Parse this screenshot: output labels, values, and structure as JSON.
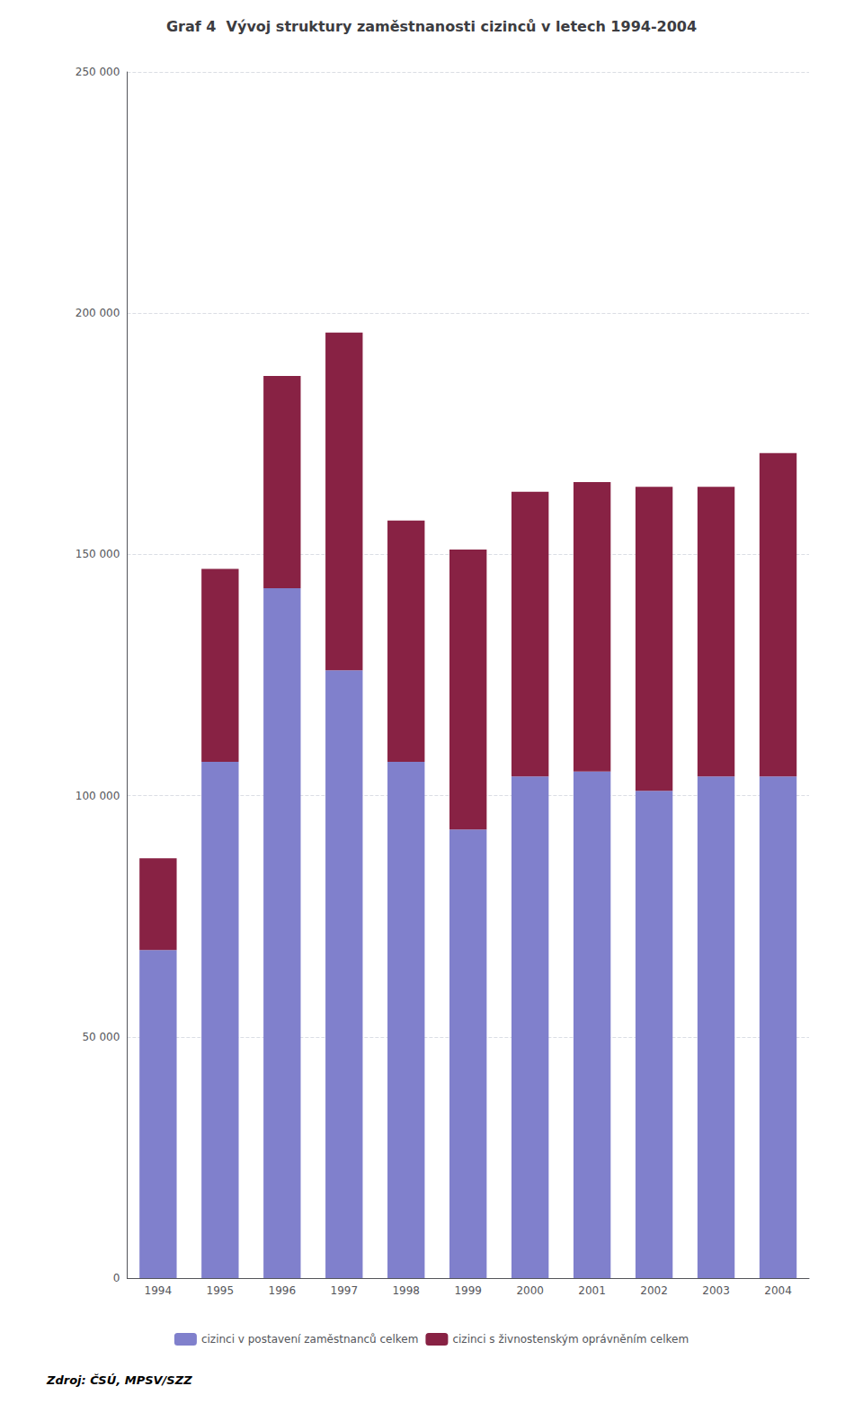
{
  "chart_data": {
    "type": "bar",
    "title": "Graf 4  Vývoj struktury zaměstnanosti cizinců v letech 1994-2004",
    "categories": [
      "1994",
      "1995",
      "1996",
      "1997",
      "1998",
      "1999",
      "2000",
      "2001",
      "2002",
      "2003",
      "2004"
    ],
    "series": [
      {
        "name": "cizinci v postavení zaměstnanců celkem",
        "color": "#8080CC",
        "values": [
          68000,
          107000,
          143000,
          126000,
          107000,
          93000,
          104000,
          105000,
          101000,
          104000,
          104000
        ]
      },
      {
        "name": "cizinci s živnostenským oprávněním celkem",
        "color": "#882244",
        "values": [
          19000,
          40000,
          44000,
          70000,
          50000,
          58000,
          59000,
          60000,
          63000,
          60000,
          67000
        ]
      }
    ],
    "stacked": true,
    "ylim": [
      0,
      250000
    ],
    "yticks": [
      0,
      {
        "value": 50000,
        "label": "50 000"
      },
      {
        "value": 100000,
        "label": "100 000"
      },
      {
        "value": 150000,
        "label": "150 000"
      },
      {
        "value": 200000,
        "label": "200 000"
      },
      {
        "value": 250000,
        "label": "250 000"
      }
    ],
    "grid": true,
    "legend": "bottom",
    "annotations": [
      "Zdroj: ČSÚ, MPSV/SZZ"
    ]
  }
}
